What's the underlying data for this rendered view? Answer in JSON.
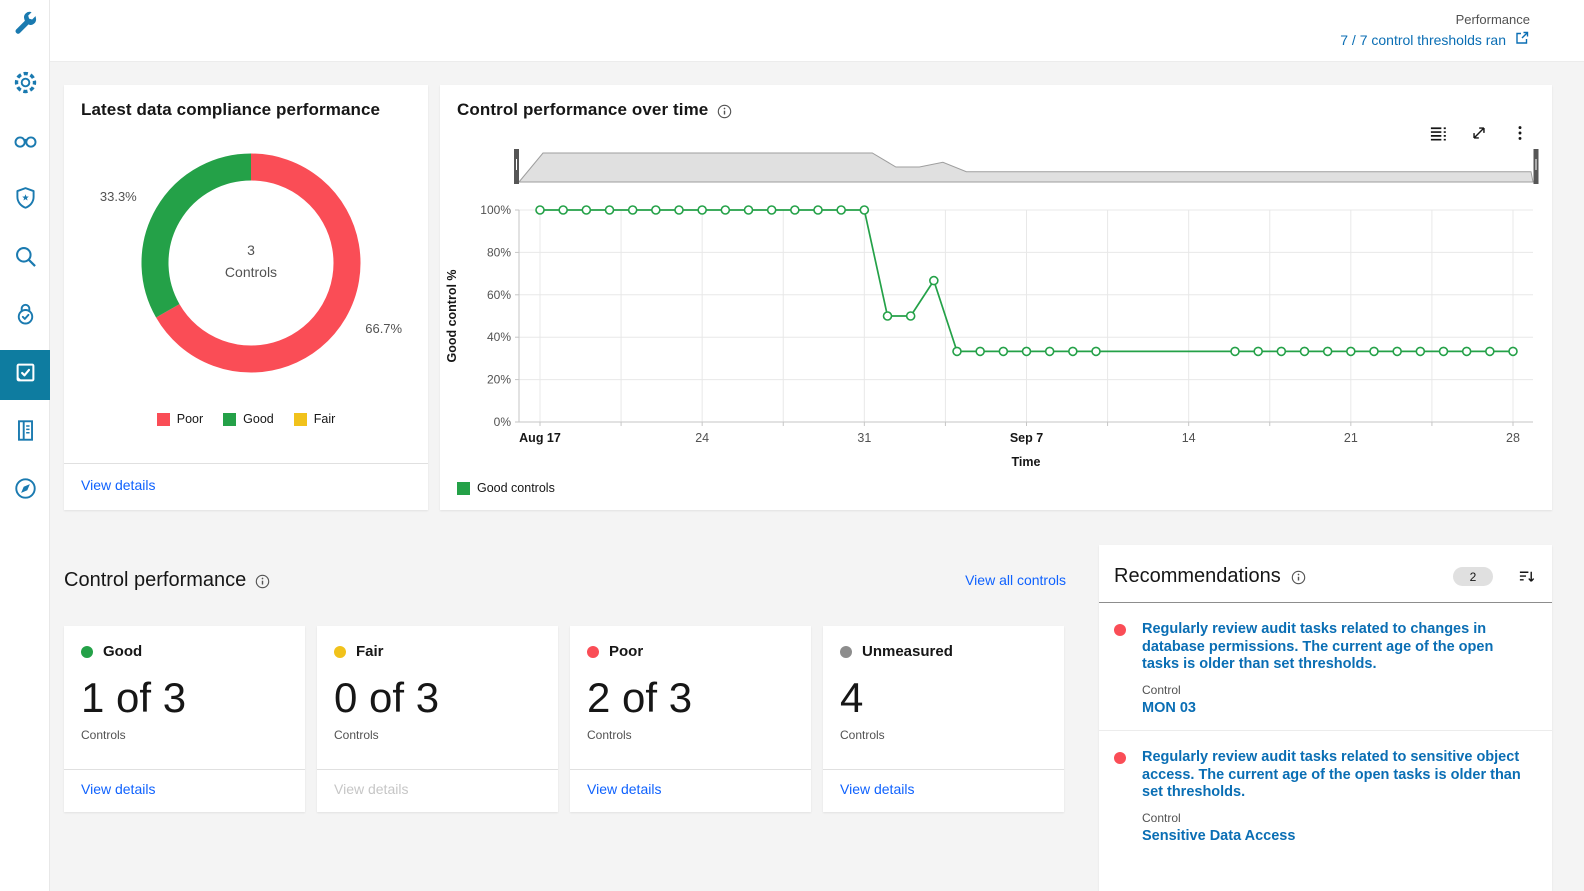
{
  "header": {
    "kicker": "Performance",
    "link_label": "7 / 7 control thresholds ran",
    "link_icon": "new-tab-icon"
  },
  "sidebar": {
    "icon_color": "#1a7ab0",
    "active_color": "#0e7ca0",
    "items": [
      {
        "icon": "wrench-icon",
        "active": false
      },
      {
        "icon": "gear-icon",
        "active": false
      },
      {
        "icon": "binoculars-icon",
        "active": false
      },
      {
        "icon": "shield-star-icon",
        "active": false
      },
      {
        "icon": "search-icon",
        "active": false
      },
      {
        "icon": "lock-check-icon",
        "active": false
      },
      {
        "icon": "task-checkbox-icon",
        "active": true
      },
      {
        "icon": "report-icon",
        "active": false
      },
      {
        "icon": "compass-icon",
        "active": false
      }
    ]
  },
  "compliance_card": {
    "title": "Latest data compliance performance",
    "view_details": "View details"
  },
  "timeseries_card": {
    "title": "Control performance over time",
    "info_icon": "info-icon",
    "toolbar_icons": [
      "data-table-icon",
      "expand-icon",
      "overflow-menu-icon"
    ],
    "legend": [
      {
        "label": "Good controls",
        "color": "#24a148"
      }
    ]
  },
  "control_performance": {
    "title": "Control performance",
    "info_icon": "info-icon",
    "view_all": "View all controls",
    "cards": [
      {
        "status": "Good",
        "color": "#24a148",
        "count": "1 of 3",
        "unit": "Controls",
        "action": "View details",
        "action_enabled": true
      },
      {
        "status": "Fair",
        "color": "#f1c21b",
        "count": "0 of 3",
        "unit": "Controls",
        "action": "View details",
        "action_enabled": false
      },
      {
        "status": "Poor",
        "color": "#fa4d56",
        "count": "2 of 3",
        "unit": "Controls",
        "action": "View details",
        "action_enabled": true
      },
      {
        "status": "Unmeasured",
        "color": "#8d8d8d",
        "count": "4",
        "unit": "Controls",
        "action": "View details",
        "action_enabled": true
      }
    ]
  },
  "recommendations": {
    "title": "Recommendations",
    "info_icon": "info-icon",
    "badge": "2",
    "sort_icon": "sort-descending-icon",
    "items": [
      {
        "severity_color": "#fa4d56",
        "text": "Regularly review audit tasks related to changes in database permissions. The current age of the open tasks is older than set thresholds.",
        "control_label": "Control",
        "control": "MON 03"
      },
      {
        "severity_color": "#fa4d56",
        "text": "Regularly review audit tasks related to sensitive object access. The current age of the open tasks is older than set thresholds.",
        "control_label": "Control",
        "control": "Sensitive Data Access"
      }
    ]
  },
  "chart_data": [
    {
      "type": "donut",
      "title": "Latest data compliance performance",
      "center": {
        "value": "3",
        "label": "Controls"
      },
      "slices": [
        {
          "label": "Poor",
          "value": 66.7,
          "display": "66.7%",
          "color": "#fa4d56"
        },
        {
          "label": "Good",
          "value": 33.3,
          "display": "33.3%",
          "color": "#24a148"
        },
        {
          "label": "Fair",
          "value": 0,
          "display": null,
          "color": "#f1c21b"
        }
      ],
      "legend_position": "bottom"
    },
    {
      "type": "line",
      "title": "Control performance over time",
      "xlabel": "Time",
      "ylabel": "Good control %",
      "ylim": [
        0,
        100
      ],
      "grid": true,
      "legend_position": "bottom-left",
      "series_name": "Good controls",
      "series_color": "#24a148",
      "y_ticks": [
        {
          "value": 0,
          "label": "0%"
        },
        {
          "value": 20,
          "label": "20%"
        },
        {
          "value": 40,
          "label": "40%"
        },
        {
          "value": 60,
          "label": "60%"
        },
        {
          "value": 80,
          "label": "80%"
        },
        {
          "value": 100,
          "label": "100%"
        }
      ],
      "x_ticks": [
        {
          "day": 0,
          "label": "Aug 17",
          "bold": true
        },
        {
          "day": 7,
          "label": "24",
          "bold": false
        },
        {
          "day": 14,
          "label": "31",
          "bold": false
        },
        {
          "day": 21,
          "label": "Sep 7",
          "bold": true
        },
        {
          "day": 28,
          "label": "14",
          "bold": false
        },
        {
          "day": 35,
          "label": "21",
          "bold": false
        },
        {
          "day": 42,
          "label": "28",
          "bold": false
        }
      ],
      "points": [
        [
          0,
          100,
          1
        ],
        [
          1,
          100,
          1
        ],
        [
          2,
          100,
          1
        ],
        [
          3,
          100,
          1
        ],
        [
          4,
          100,
          1
        ],
        [
          5,
          100,
          1
        ],
        [
          6,
          100,
          1
        ],
        [
          7,
          100,
          1
        ],
        [
          8,
          100,
          1
        ],
        [
          9,
          100,
          1
        ],
        [
          10,
          100,
          1
        ],
        [
          11,
          100,
          1
        ],
        [
          12,
          100,
          1
        ],
        [
          13,
          100,
          1
        ],
        [
          14,
          100,
          1
        ],
        [
          15,
          50,
          1
        ],
        [
          16,
          50,
          1
        ],
        [
          17,
          66.7,
          1
        ],
        [
          18,
          33.3,
          1
        ],
        [
          19,
          33.3,
          1
        ],
        [
          20,
          33.3,
          1
        ],
        [
          21,
          33.3,
          1
        ],
        [
          22,
          33.3,
          1
        ],
        [
          23,
          33.3,
          1
        ],
        [
          24,
          33.3,
          1
        ],
        [
          25,
          33.3,
          0
        ],
        [
          26,
          33.3,
          0
        ],
        [
          27,
          33.3,
          0
        ],
        [
          28,
          33.3,
          0
        ],
        [
          29,
          33.3,
          0
        ],
        [
          30,
          33.3,
          1
        ],
        [
          31,
          33.3,
          1
        ],
        [
          32,
          33.3,
          1
        ],
        [
          33,
          33.3,
          1
        ],
        [
          34,
          33.3,
          1
        ],
        [
          35,
          33.3,
          1
        ],
        [
          36,
          33.3,
          1
        ],
        [
          37,
          33.3,
          1
        ],
        [
          38,
          33.3,
          1
        ],
        [
          39,
          33.3,
          1
        ],
        [
          40,
          33.3,
          1
        ],
        [
          41,
          33.3,
          1
        ],
        [
          42,
          33.3,
          1
        ]
      ],
      "brush": {
        "enabled": true
      }
    }
  ]
}
